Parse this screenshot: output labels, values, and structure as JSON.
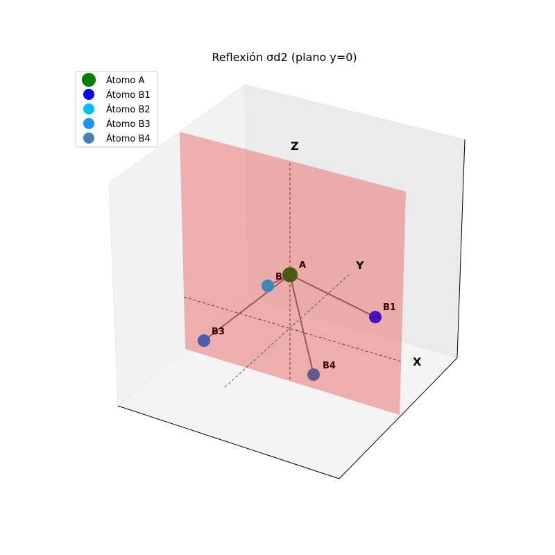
{
  "chart_data": {
    "type": "scatter3d",
    "title": "Reflexión σd2 (plano y=0)",
    "axes": {
      "x_label": "X",
      "y_label": "Y",
      "z_label": "Z"
    },
    "reflection_plane": {
      "equation": "y=0",
      "color": "#e88888"
    },
    "atoms": [
      {
        "id": "A",
        "label": "A",
        "legend": "Átomo A",
        "color": "#008000",
        "x": 0,
        "y": 0,
        "z": 0
      },
      {
        "id": "B1",
        "label": "B1",
        "legend": "Átomo B1",
        "color": "#0000ff",
        "x": 1,
        "y": 0,
        "z": -0.33
      },
      {
        "id": "B2",
        "label": "B2",
        "legend": "Átomo B2",
        "color": "#00bfff",
        "x": 0.15,
        "y": 0.7,
        "z": -0.12
      },
      {
        "id": "B3",
        "label": "B3",
        "legend": "Átomo B3",
        "color": "#1e90ff",
        "x": -1,
        "y": 0,
        "z": -0.9
      },
      {
        "id": "B4",
        "label": "B4",
        "legend": "Átomo B4",
        "color": "#4682b4",
        "x": 0.2,
        "y": -0.7,
        "z": -0.62
      }
    ],
    "bonds": [
      [
        "A",
        "B1"
      ],
      [
        "A",
        "B2"
      ],
      [
        "A",
        "B3"
      ],
      [
        "A",
        "B4"
      ]
    ],
    "legend_position": "top-left",
    "grid": false
  }
}
